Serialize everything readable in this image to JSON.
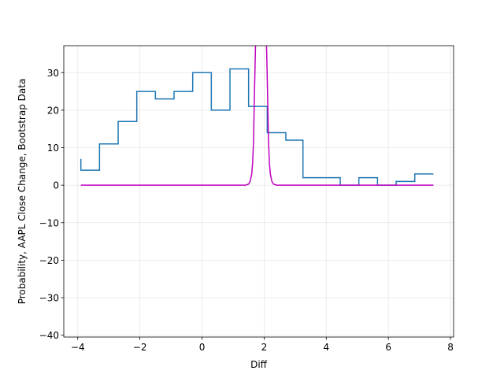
{
  "chart_data": {
    "type": "line",
    "title": "",
    "xlabel": "Diff",
    "ylabel": "Probability, AAPL Close Change, Bootstrap Data",
    "xlim": [
      -4.45,
      8.1
    ],
    "ylim": [
      -40.5,
      37.2
    ],
    "xticks": [
      -4,
      -2,
      0,
      2,
      4,
      6,
      8
    ],
    "xtick_labels": [
      "−4",
      "−2",
      "0",
      "2",
      "4",
      "6",
      "8"
    ],
    "yticks": [
      -40,
      -30,
      -20,
      -10,
      0,
      10,
      20,
      30
    ],
    "ytick_labels": [
      "−40",
      "−30",
      "−20",
      "−10",
      "0",
      "10",
      "20",
      "30"
    ],
    "grid": true,
    "series": [
      {
        "style": "step",
        "color": "#1f77b4",
        "x": [
          -3.9,
          -3.9,
          -3.3,
          -3.3,
          -2.7,
          -2.7,
          -2.1,
          -2.1,
          -1.5,
          -1.5,
          -0.9,
          -0.9,
          -0.3,
          -0.3,
          0.3,
          0.3,
          0.9,
          0.9,
          1.5,
          1.5,
          2.1,
          2.1,
          2.7,
          2.7,
          3.25,
          3.25,
          3.85,
          3.85,
          4.45,
          4.45,
          5.05,
          5.05,
          5.65,
          5.65,
          6.25,
          6.25,
          6.85,
          6.85,
          7.45
        ],
        "y": [
          7,
          4,
          4,
          11,
          11,
          17,
          17,
          25,
          25,
          23,
          23,
          25,
          25,
          30,
          30,
          20,
          20,
          31,
          31,
          21,
          21,
          14,
          14,
          12,
          12,
          2,
          2,
          2,
          2,
          0,
          0,
          2,
          2,
          0,
          0,
          1,
          1,
          3,
          3
        ]
      },
      {
        "style": "line",
        "color": "#bf00bf",
        "x": [
          -3.9,
          1.4,
          1.5,
          1.55,
          1.6,
          1.63,
          1.66,
          1.69,
          1.73,
          2.07,
          2.11,
          2.14,
          2.17,
          2.2,
          2.25,
          2.3,
          2.4,
          7.45
        ],
        "y": [
          0,
          0,
          0.3,
          1,
          3,
          6,
          12,
          25,
          40,
          40,
          25,
          12,
          6,
          3,
          1,
          0.3,
          0,
          0
        ]
      }
    ]
  }
}
